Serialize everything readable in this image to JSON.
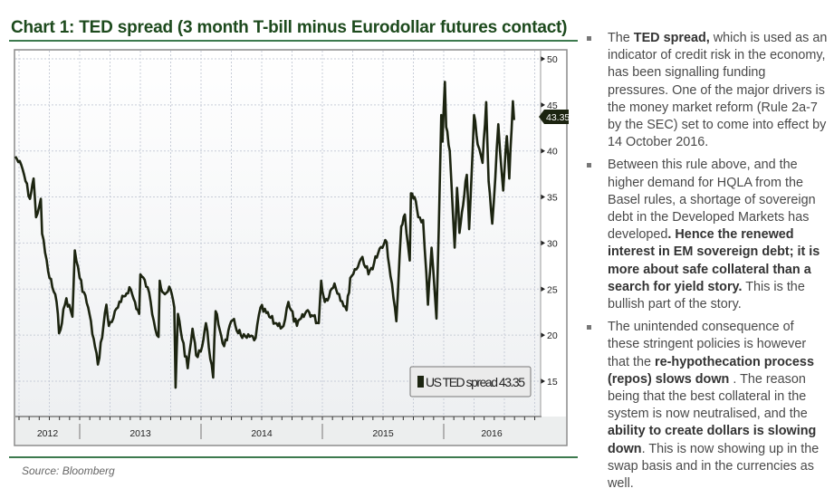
{
  "title": "Chart 1: TED spread (3 month T-bill minus Eurodollar futures contact)",
  "source": "Source: Bloomberg",
  "colors": {
    "title": "#1d4a1d",
    "rule": "#3d7a4e",
    "line": "#1c2410",
    "grid": "#c8cdd8"
  },
  "chart_data": {
    "type": "line",
    "title": "",
    "xlabel": "",
    "ylabel": "",
    "ylim": [
      13,
      51
    ],
    "yticks": [
      15,
      20,
      25,
      30,
      35,
      40,
      45,
      50
    ],
    "xticks": [
      "2012",
      "2013",
      "2014",
      "2015",
      "2016"
    ],
    "y_axis_side": "right",
    "grid": true,
    "legend": {
      "placement": "bottom-right",
      "label": "US TED spread 43.35"
    },
    "last_value_tag": "43.35",
    "series": [
      {
        "name": "US TED spread",
        "x": [
          2012.47,
          2012.53,
          2012.59,
          2012.62,
          2012.64,
          2012.68,
          2012.69,
          2012.74,
          2012.81,
          2012.83,
          2012.89,
          2012.94,
          2012.96,
          2013.0,
          2013.07,
          2013.15,
          2013.22,
          2013.24,
          2013.34,
          2013.41,
          2013.49,
          2013.5,
          2013.56,
          2013.61,
          2013.65,
          2013.66,
          2013.69,
          2013.75,
          2013.78,
          2013.79,
          2013.81,
          2013.89,
          2013.93,
          2013.96,
          2014.01,
          2014.04,
          2014.1,
          2014.12,
          2014.19,
          2014.26,
          2014.34,
          2014.45,
          2014.49,
          2014.61,
          2014.68,
          2014.72,
          2014.73,
          2014.79,
          2014.88,
          2014.97,
          2014.99,
          2015.02,
          2015.1,
          2015.2,
          2015.23,
          2015.33,
          2015.38,
          2015.46,
          2015.53,
          2015.55,
          2015.61,
          2015.65,
          2015.68,
          2015.72,
          2015.73,
          2015.76,
          2015.79,
          2015.83,
          2015.87,
          2015.9,
          2015.94,
          2015.96,
          2015.98,
          2015.99,
          2016.01,
          2016.02,
          2016.05,
          2016.09,
          2016.11,
          2016.13,
          2016.16,
          2016.19,
          2016.21,
          2016.25,
          2016.28,
          2016.32,
          2016.35,
          2016.37,
          2016.4,
          2016.45,
          2016.49,
          2016.52,
          2016.54,
          2016.57,
          2016.58
        ],
        "y": [
          39.4,
          38,
          34.8,
          37,
          32.8,
          34.8,
          31,
          26.9,
          23.6,
          20.2,
          24,
          22,
          29.2,
          26.2,
          23,
          16.8,
          23.3,
          21,
          23.6,
          25.2,
          22.3,
          26.6,
          25.2,
          21.6,
          19.8,
          25.9,
          24.6,
          24.9,
          23,
          14.3,
          22.3,
          16.4,
          20.7,
          17.8,
          18.8,
          21.3,
          15.4,
          22.6,
          18.8,
          21.6,
          19.7,
          19.7,
          23,
          21.3,
          21,
          23.6,
          23,
          21,
          22.7,
          21.3,
          25.9,
          23.6,
          25.6,
          22.7,
          26.2,
          28.5,
          26.6,
          28.9,
          30.1,
          27.6,
          21.5,
          31.8,
          33.1,
          28.1,
          35.4,
          35,
          32.8,
          32.5,
          23.3,
          29.5,
          21.8,
          31.8,
          43.9,
          41,
          47.5,
          42.6,
          40,
          29.5,
          36,
          31.1,
          34.1,
          37.4,
          31.5,
          43.9,
          40.7,
          38.7,
          45.3,
          36.7,
          32.1,
          42.9,
          35.7,
          41.6,
          37,
          45.4,
          43.35
        ]
      }
    ]
  },
  "commentary": {
    "bullets": [
      {
        "segments": [
          {
            "text": "The ",
            "bold": false
          },
          {
            "text": "TED spread,",
            "bold": true
          },
          {
            "text": " which is used as an indicator of credit risk in the economy, has been signalling funding pressures. One of the major drivers is the money market reform (Rule 2a-7 by the SEC) set to come into effect by 14 October 2016.",
            "bold": false
          }
        ]
      },
      {
        "segments": [
          {
            "text": "Between this rule above, and the higher demand for HQLA from the Basel rules, a shortage of sovereign debt in the Developed Markets has developed",
            "bold": false
          },
          {
            "text": ". Hence the renewed interest in EM sovereign debt; it is more about safe collateral than a search for yield story.",
            "bold": true
          },
          {
            "text": " This is the bullish part of the story.",
            "bold": false
          }
        ]
      },
      {
        "segments": [
          {
            "text": "The unintended consequence of these stringent policies is however that the ",
            "bold": false
          },
          {
            "text": "re-hypothecation process (repos) slows down",
            "bold": true
          },
          {
            "text": " . The reason being that the best collateral in the system is now neutralised, and the ",
            "bold": false
          },
          {
            "text": "ability to create dollars is slowing down",
            "bold": true
          },
          {
            "text": ". This is now showing up in the swap basis and in the currencies as well.",
            "bold": false
          }
        ]
      }
    ]
  }
}
